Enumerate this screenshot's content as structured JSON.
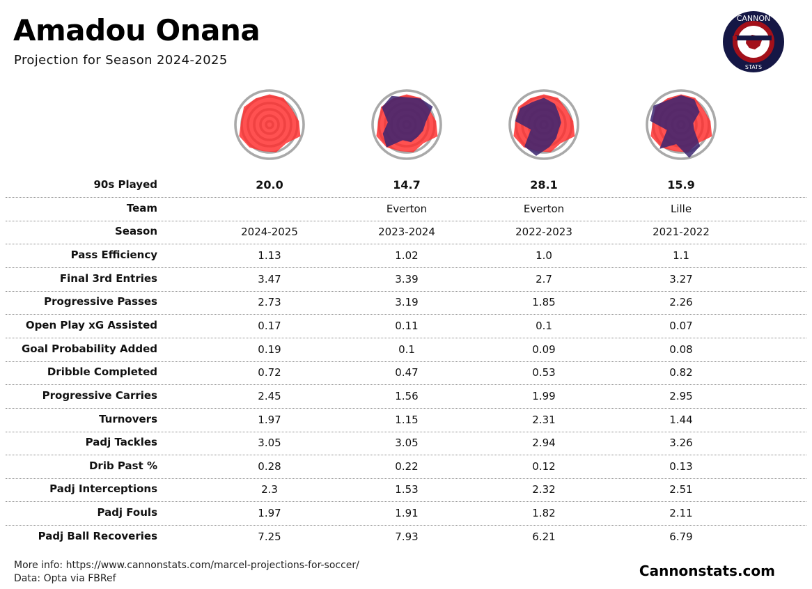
{
  "header": {
    "title": "Amadou Onana",
    "subtitle": "Projection for Season 2024-2025"
  },
  "logo": {
    "top_text": "CANNON",
    "bottom_text": "STATS"
  },
  "colors": {
    "projection_fill": "#ff2b2b",
    "history_fill": "#3b2470",
    "ring": "#a9a9a9",
    "logo_navy": "#151745",
    "logo_red": "#a3101a"
  },
  "chart_data": {
    "type": "table",
    "columns": [
      {
        "played_90s": "20.0",
        "team": "",
        "season": "2024-2025",
        "values": [
          "1.13",
          "3.47",
          "2.73",
          "0.17",
          "0.19",
          "0.72",
          "2.45",
          "1.97",
          "3.05",
          "0.28",
          "2.3",
          "1.97",
          "7.25"
        ]
      },
      {
        "played_90s": "14.7",
        "team": "Everton",
        "season": "2023-2024",
        "values": [
          "1.02",
          "3.39",
          "3.19",
          "0.11",
          "0.1",
          "0.47",
          "1.56",
          "1.15",
          "3.05",
          "0.22",
          "1.53",
          "1.91",
          "7.93"
        ]
      },
      {
        "played_90s": "28.1",
        "team": "Everton",
        "season": "2022-2023",
        "values": [
          "1.0",
          "2.7",
          "1.85",
          "0.1",
          "0.09",
          "0.53",
          "1.99",
          "2.31",
          "2.94",
          "0.12",
          "2.32",
          "1.82",
          "6.21"
        ]
      },
      {
        "played_90s": "15.9",
        "team": "Lille",
        "season": "2021-2022",
        "values": [
          "1.1",
          "3.27",
          "2.26",
          "0.07",
          "0.08",
          "0.82",
          "2.95",
          "1.44",
          "3.26",
          "0.13",
          "2.51",
          "2.11",
          "6.79"
        ]
      }
    ],
    "row_labels": {
      "played_90s": "90s Played",
      "team": "Team",
      "season": "Season",
      "metrics": [
        "Pass Efficiency",
        "Final 3rd Entries",
        "Progressive Passes",
        "Open Play xG Assisted",
        "Goal Probability Added",
        "Dribble Completed",
        "Progressive Carries",
        "Turnovers",
        "Padj Tackles",
        "Drib Past %",
        "Padj Interceptions",
        "Padj Fouls",
        "Padj Ball Recoveries"
      ]
    },
    "radar_scale_max": [
      1.3,
      4.0,
      3.5,
      0.2,
      0.2,
      1.0,
      3.0,
      2.5,
      3.5,
      0.3,
      2.8,
      2.2,
      8.5
    ]
  },
  "footer": {
    "more_info": "More info: https://www.cannonstats.com/marcel-projections-for-soccer/",
    "data_source": "Data: Opta via FBRef",
    "brand": "Cannonstats.com"
  }
}
